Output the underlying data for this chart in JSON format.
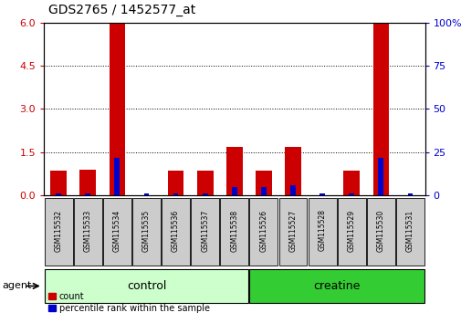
{
  "title": "GDS2765 / 1452577_at",
  "samples": [
    "GSM115532",
    "GSM115533",
    "GSM115534",
    "GSM115535",
    "GSM115536",
    "GSM115537",
    "GSM115538",
    "GSM115526",
    "GSM115527",
    "GSM115528",
    "GSM115529",
    "GSM115530",
    "GSM115531"
  ],
  "count_values": [
    0.85,
    0.9,
    6.0,
    0.0,
    0.85,
    0.85,
    1.7,
    0.85,
    1.7,
    0.0,
    0.85,
    6.0,
    0.0
  ],
  "percentile_values": [
    1,
    1,
    22,
    1,
    1,
    1,
    5,
    5,
    6,
    1,
    1,
    22,
    1
  ],
  "ylim_left": [
    0,
    6
  ],
  "ylim_right": [
    0,
    100
  ],
  "yticks_left": [
    0,
    1.5,
    3,
    4.5,
    6
  ],
  "yticks_right": [
    0,
    25,
    50,
    75,
    100
  ],
  "left_color": "#cc0000",
  "right_color": "#0000cc",
  "red_bar_width": 0.55,
  "blue_bar_width": 0.18,
  "control_samples_count": 7,
  "creatine_samples_count": 6,
  "control_color": "#ccffcc",
  "creatine_color": "#33cc33",
  "agent_label": "agent",
  "control_label": "control",
  "creatine_label": "creatine",
  "legend_count": "count",
  "legend_percentile": "percentile rank within the sample",
  "tick_label_color_left": "#cc0000",
  "tick_label_color_right": "#0000cc",
  "sample_box_color": "#cccccc",
  "title_fontsize": 10,
  "tick_fontsize": 8,
  "sample_fontsize": 5.5,
  "group_fontsize": 9,
  "legend_fontsize": 7,
  "agent_fontsize": 8
}
